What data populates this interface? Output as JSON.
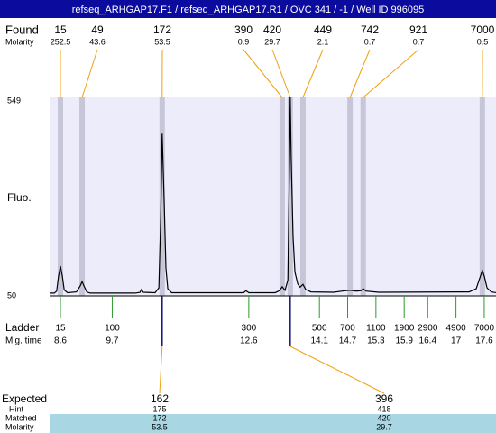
{
  "header": {
    "title": "refseq_ARHGAP17.F1 / refseq_ARHGAP17.R1 / OVC 341  / -1  / Well ID 996095"
  },
  "labels": {
    "found": "Found",
    "molarity": "Molarity",
    "fluo": "Fluo.",
    "ladder": "Ladder",
    "mig_time": "Mig. time",
    "expected": "Expected",
    "hint": "Hint",
    "matched": "Matched",
    "molarity_matched": "Molarity"
  },
  "chart_data": {
    "type": "line",
    "x": [
      8.37,
      8.47,
      8.52,
      8.56,
      8.6,
      8.64,
      8.68,
      8.75,
      8.94,
      9.02,
      9.06,
      9.1,
      9.16,
      9.23,
      10.19,
      10.29,
      10.32,
      10.36,
      10.61,
      10.69,
      10.73,
      10.76,
      10.8,
      10.84,
      10.88,
      10.96,
      12.49,
      12.54,
      12.6,
      13.16,
      13.25,
      13.31,
      13.37,
      13.43,
      13.46,
      13.48,
      13.5,
      13.54,
      13.58,
      13.64,
      13.69,
      13.75,
      13.81,
      13.92,
      14.4,
      14.59,
      14.75,
      14.88,
      14.98,
      15.03,
      15.09,
      15.36,
      17.28,
      17.43,
      17.52,
      17.56,
      17.6,
      17.66,
      17.75,
      17.85
    ],
    "series": [
      {
        "color": "#000000",
        "values": [
          57,
          57,
          62,
          100,
          125,
          100,
          65,
          58,
          60,
          75,
          86,
          75,
          60,
          57,
          57,
          59,
          66,
          59,
          58,
          70,
          250,
          460,
          300,
          120,
          68,
          58,
          58,
          63,
          58,
          58,
          63,
          73,
          64,
          90,
          350,
          549,
          400,
          200,
          110,
          80,
          72,
          79,
          66,
          60,
          59,
          62,
          64,
          62,
          63,
          68,
          62,
          59,
          60,
          68,
          100,
          114,
          100,
          70,
          60,
          58
        ]
      }
    ],
    "xlim": [
      8.37,
      17.85
    ],
    "ylim": [
      50,
      549
    ],
    "yticks": [
      50,
      549
    ],
    "peaks": [
      {
        "size": 15,
        "molarity": 252.5,
        "time": 8.6
      },
      {
        "size": 49,
        "molarity": 43.6,
        "time": 9.06
      },
      {
        "size": 172,
        "molarity": 53.5,
        "time": 10.76
      },
      {
        "size": 390,
        "molarity": 0.9,
        "time": 13.31
      },
      {
        "size": 420,
        "molarity": 29.7,
        "time": 13.48
      },
      {
        "size": 449,
        "molarity": 2.1,
        "time": 13.75
      },
      {
        "size": 742,
        "molarity": 0.7,
        "time": 14.75
      },
      {
        "size": 921,
        "molarity": 0.7,
        "time": 15.03
      },
      {
        "size": 7000,
        "molarity": 0.5,
        "time": 17.56
      }
    ],
    "ladder": [
      {
        "size": 15,
        "time": 8.6
      },
      {
        "size": 100,
        "time": 9.7
      },
      {
        "size": 300,
        "time": 12.6
      },
      {
        "size": 500,
        "time": 14.1
      },
      {
        "size": 700,
        "time": 14.7
      },
      {
        "size": 1100,
        "time": 15.3
      },
      {
        "size": 1900,
        "time": 15.9
      },
      {
        "size": 2900,
        "time": 16.4
      },
      {
        "size": 4900,
        "time": 17
      },
      {
        "size": 7000,
        "time": 17.6
      }
    ],
    "expected": [
      {
        "expected": 162,
        "hint": 175,
        "matched": 172,
        "molarity": 53.5
      },
      {
        "expected": 396,
        "hint": 418,
        "matched": 420,
        "molarity": 29.7
      }
    ]
  }
}
